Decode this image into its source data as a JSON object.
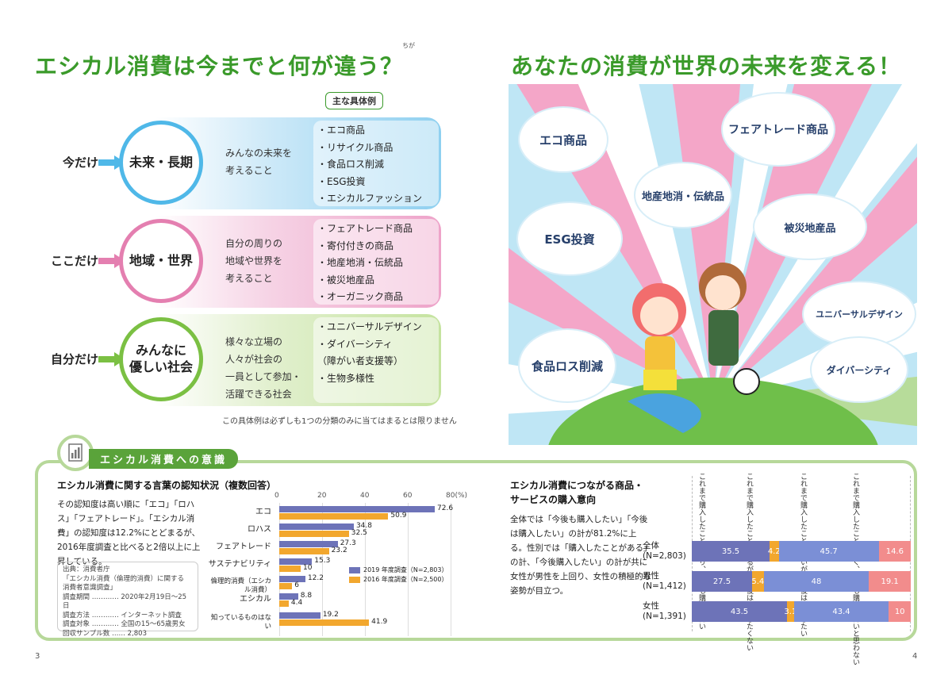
{
  "left_title": "エシカル消費は今までと何が違う？",
  "left_title_ruby": "ちが",
  "right_title": "あなたの消費が世界の未来を変える！",
  "examples_tag": "主な具体例",
  "rows": [
    {
      "left": "今だけ",
      "circle": "未来・長期",
      "desc": "みんなの未来を\n考えること",
      "examples": [
        "・エコ商品",
        "・リサイクル商品",
        "・食品ロス削減",
        "・ESG投資",
        "・エシカルファッション"
      ]
    },
    {
      "left": "ここだけ",
      "circle": "地域・世界",
      "desc": "自分の周りの\n地域や世界を\n考えること",
      "examples": [
        "・フェアトレード商品",
        "・寄付付きの商品",
        "・地産地消・伝統品",
        "・被災地産品",
        "・オーガニック商品"
      ]
    },
    {
      "left": "自分だけ",
      "circle": "みんなに\n優しい社会",
      "desc": "様々な立場の\n人々が社会の\n一員として参加・\n活躍できる社会",
      "examples": [
        "・ユニバーサルデザイン",
        "・ダイバーシティ",
        "（障がい者支援等）",
        "・生物多様性"
      ]
    }
  ],
  "note": "この具体例は必ずしも1つの分類のみに当てはまるとは限りません",
  "illustration_labels": [
    "エコ商品",
    "フェアトレード商品",
    "地産地消・伝統品",
    "ESG投資",
    "被災地産品",
    "ユニバーサルデザイン",
    "食品ロス削減",
    "ダイバーシティ"
  ],
  "section_title": "エシカル消費への意識",
  "chart1": {
    "title": "エシカル消費に関する言葉の認知状況（複数回答）",
    "text": "その認知度は高い順に「エコ」「ロハス」「フェアトレード」。「エシカル消費」の認知度は12.2%にとどまるが、2016年度調査と比べると2倍以上に上昇している。",
    "source_lines": [
      "出典：消費者庁",
      "「エシカル消費（倫理的消費）に関する",
      "消費者意識調査」",
      "調査期間 ………… 2020年2月19日～25日",
      "調査方法 ………… インターネット調査",
      "調査対象 ………… 全国の15～65歳男女",
      "回収サンプル数 …… 2,803"
    ],
    "ticks": [
      "0",
      "20",
      "40",
      "60",
      "80(%)"
    ],
    "legend": [
      "2019 年度調査（N=2,803）",
      "2016 年度調査（N=2,500）"
    ]
  },
  "chart2": {
    "title": "エシカル消費につながる商品・サービスの購入意向",
    "text": "全体では「今後も購入したい」「今後は購入したい」の計が81.2%に上る。性別では「購入したことがある」の計、「今後購入したい」の計が共に女性が男性を上回り、女性の積極的な姿勢が目立つ。",
    "headers": [
      "これまで購入したことがあり、今後も購入したい",
      "これまで購入したことはあるが、今後は購入したくない",
      "これまで購入したことはないが、今後は購入したい",
      "これまで購入したことはなく、今後も購入したいと思わない"
    ]
  },
  "colors": {
    "blue": "#4fb8e8",
    "pink": "#e47fb0",
    "green": "#7bc043",
    "bar2019": "#6d73b8",
    "bar2016": "#f2a72e",
    "seg1": "#6d73b8",
    "seg2": "#f2a72e",
    "seg3": "#7b8fd6",
    "seg4": "#f28c8c"
  },
  "chart_data": [
    {
      "type": "bar",
      "title": "エシカル消費に関する言葉の認知状況（複数回答）",
      "categories": [
        "エコ",
        "ロハス",
        "フェアトレード",
        "サステナビリティ",
        "倫理的消費（エシカル消費）",
        "エシカル",
        "知っているものはない"
      ],
      "series": [
        {
          "name": "2019 年度調査（N=2,803）",
          "values": [
            72.6,
            34.8,
            27.3,
            15.3,
            12.2,
            8.8,
            19.2
          ]
        },
        {
          "name": "2016 年度調査（N=2,500）",
          "values": [
            50.9,
            32.5,
            23.2,
            10.0,
            6.0,
            4.4,
            41.9
          ]
        }
      ],
      "xlim": [
        0,
        80
      ],
      "xlabel": "(%)"
    },
    {
      "type": "bar",
      "title": "エシカル消費につながる商品・サービスの購入意向",
      "categories": [
        "全体\n(N=2,803)",
        "男性\n(N=1,412)",
        "女性\n(N=1,391)"
      ],
      "series": [
        {
          "name": "これまで購入したことがあり、今後も購入したい",
          "values": [
            35.5,
            27.5,
            43.5
          ]
        },
        {
          "name": "これまで購入したことはあるが、今後は購入したくない",
          "values": [
            4.2,
            5.4,
            3.1
          ]
        },
        {
          "name": "これまで購入したことはないが、今後は購入したい",
          "values": [
            45.7,
            48.0,
            43.4
          ]
        },
        {
          "name": "これまで購入したことはなく、今後も購入したいと思わない",
          "values": [
            14.6,
            19.1,
            10.0
          ]
        }
      ],
      "stacked": true
    }
  ],
  "page_left": "3",
  "page_right": "4"
}
